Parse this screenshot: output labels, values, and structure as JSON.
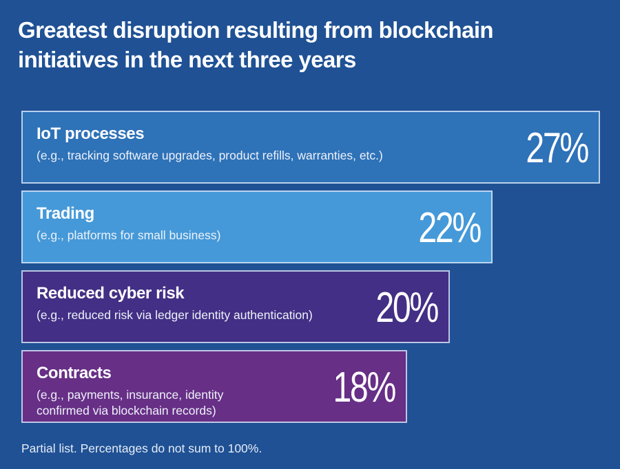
{
  "chart_data": {
    "type": "bar",
    "orientation": "horizontal",
    "title": "Greatest disruption resulting from blockchain initiatives in the next three years",
    "categories": [
      "IoT processes",
      "Trading",
      "Reduced cyber risk",
      "Contracts"
    ],
    "descriptions": [
      "(e.g., tracking software upgrades, product refills, warranties, etc.)",
      "(e.g., platforms for small business)",
      "(e.g., reduced risk via ledger identity authentication)",
      "(e.g., payments, insurance, identity confirmed via blockchain records)"
    ],
    "values": [
      27,
      22,
      20,
      18
    ],
    "value_labels": [
      "27%",
      "22%",
      "20%",
      "18%"
    ],
    "unit": "%",
    "colors": [
      "#2e72b8",
      "#4599d8",
      "#432f85",
      "#672f86"
    ],
    "xlabel": "",
    "ylabel": "",
    "grid": false,
    "legend": "none",
    "footnote": "Partial list. Percentages do not sum to 100%."
  },
  "background_color": "#1f5194"
}
